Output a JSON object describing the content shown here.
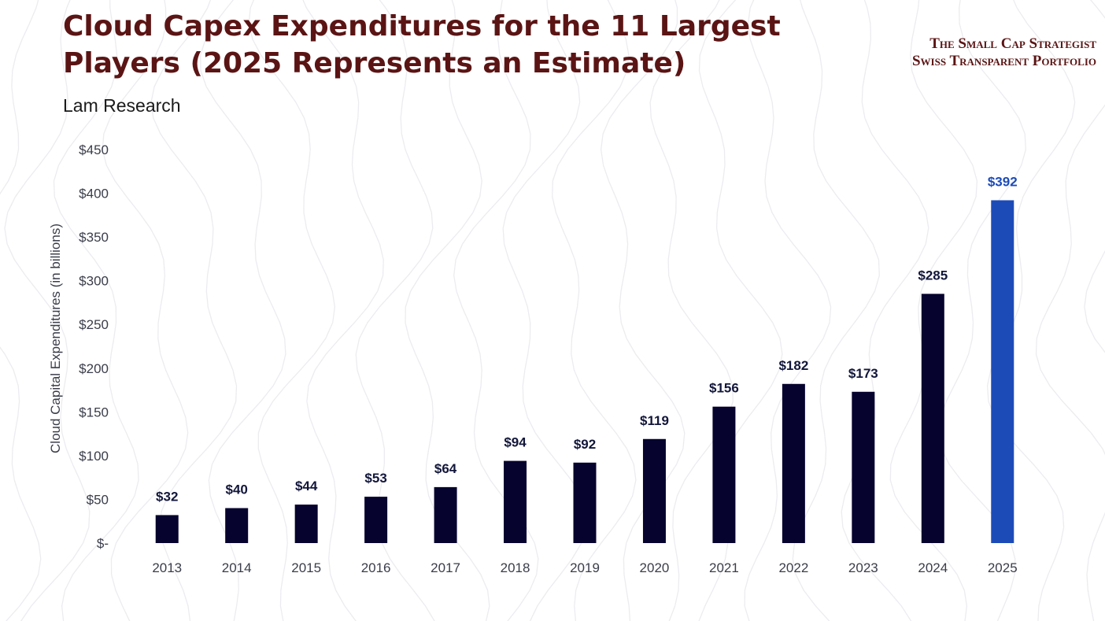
{
  "header": {
    "title": "Cloud Capex Expenditures for the 11 Largest Players (2025 Represents an Estimate)",
    "subtitle": "Lam Research"
  },
  "brand": {
    "line1": "The Small Cap Strategist",
    "line2": "Swiss Transparent Portfolio"
  },
  "colors": {
    "bar": "#06032e",
    "highlight_bar": "#1c4bb8",
    "title": "#5b1414",
    "axis_text": "#3a3d4a",
    "label_text": "#12163a",
    "highlight_label": "#1c4bb8"
  },
  "chart_data": {
    "type": "bar",
    "categories": [
      "2013",
      "2014",
      "2015",
      "2016",
      "2017",
      "2018",
      "2019",
      "2020",
      "2021",
      "2022",
      "2023",
      "2024",
      "2025"
    ],
    "values": [
      32,
      40,
      44,
      53,
      64,
      94,
      92,
      119,
      156,
      182,
      173,
      285,
      392
    ],
    "data_labels": [
      "$32",
      "$40",
      "$44",
      "$53",
      "$64",
      "$94",
      "$92",
      "$119",
      "$156",
      "$182",
      "$173",
      "$285",
      "$392"
    ],
    "highlight_category": "2025",
    "ylabel": "Cloud Capital Expenditures (in billions)",
    "xlabel": "",
    "ylim": [
      0,
      450
    ],
    "yticks": [
      0,
      50,
      100,
      150,
      200,
      250,
      300,
      350,
      400,
      450
    ],
    "ytick_labels": [
      "$-",
      "$50",
      "$100",
      "$150",
      "$200",
      "$250",
      "$300",
      "$350",
      "$400",
      "$450"
    ],
    "grid": false,
    "legend": "none"
  }
}
